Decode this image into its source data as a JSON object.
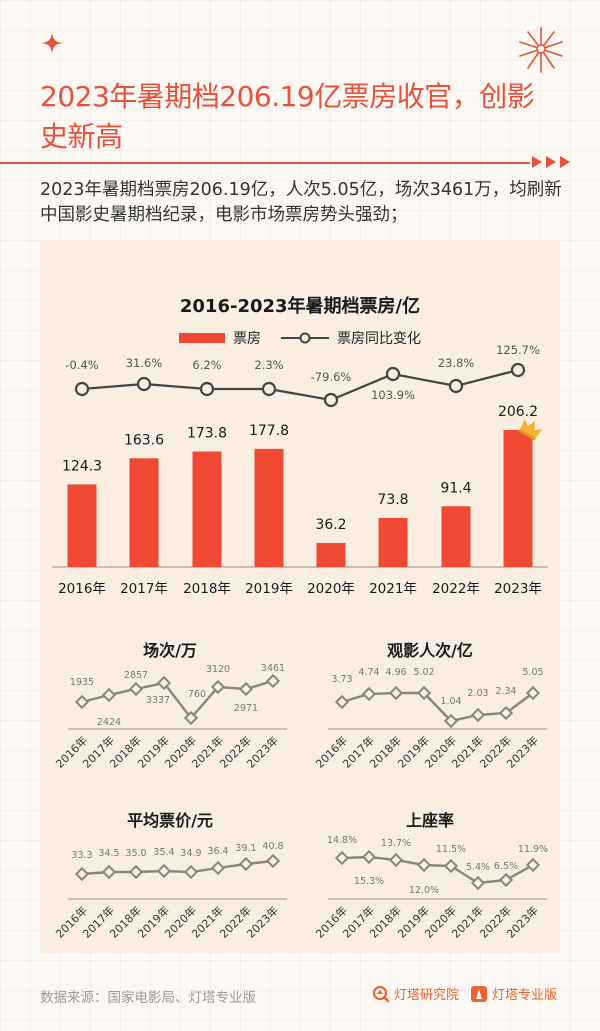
{
  "header": {
    "title": "2023年暑期档206.19亿票房收官，创影史新高",
    "summary": "2023年暑期档票房206.19亿，人次5.05亿，场次3461万，均刷新中国影史暑期档纪录，电影市场票房势头强劲；"
  },
  "colors": {
    "accent": "#e8523d",
    "bar": "#f04a35",
    "line_dark": "#444444",
    "line_gray": "#8a8480",
    "card_bg": "#faeee3",
    "page_bg": "#fcf8f3",
    "brand": "#f0622f"
  },
  "icons": {
    "top_left": "four-point-star-icon",
    "top_right": "firework-icon",
    "divider_end": "triple-arrow-icon",
    "bar_top": "crown-icon"
  },
  "chart_data": [
    {
      "type": "bar",
      "title": "2016-2023年暑期档票房/亿",
      "categories": [
        "2016年",
        "2017年",
        "2018年",
        "2019年",
        "2020年",
        "2021年",
        "2022年",
        "2023年"
      ],
      "series": [
        {
          "name": "票房",
          "type": "bar",
          "values": [
            124.3,
            163.6,
            173.8,
            177.8,
            36.2,
            73.8,
            91.4,
            206.2
          ]
        },
        {
          "name": "票房同比变化",
          "type": "line",
          "values": [
            -0.4,
            31.6,
            6.2,
            2.3,
            -79.6,
            103.9,
            23.8,
            125.7
          ],
          "labels": [
            "-0.4%",
            "31.6%",
            "6.2%",
            "2.3%",
            "-79.6%",
            "103.9%",
            "23.8%",
            "125.7%"
          ]
        }
      ],
      "legend": [
        "票房",
        "票房同比变化"
      ],
      "legend_position": "top",
      "grid": false
    },
    {
      "type": "line",
      "title": "场次/万",
      "categories": [
        "2016年",
        "2017年",
        "2018年",
        "2019年",
        "2020年",
        "2021年",
        "2022年",
        "2023年"
      ],
      "values": [
        1935,
        2424,
        2857,
        3337,
        760,
        3120,
        2971,
        3461
      ],
      "labels": [
        "1935",
        "2424",
        "2857",
        "3337",
        "760",
        "3120",
        "2971",
        "3461"
      ]
    },
    {
      "type": "line",
      "title": "观影人次/亿",
      "categories": [
        "2016年",
        "2017年",
        "2018年",
        "2019年",
        "2020年",
        "2021年",
        "2022年",
        "2023年"
      ],
      "values": [
        3.73,
        4.74,
        4.96,
        5.02,
        1.04,
        2.03,
        2.34,
        5.05
      ],
      "labels": [
        "3.73",
        "4.74",
        "4.96",
        "5.02",
        "1.04",
        "2.03",
        "2.34",
        "5.05"
      ]
    },
    {
      "type": "line",
      "title": "平均票价/元",
      "categories": [
        "2016年",
        "2017年",
        "2018年",
        "2019年",
        "2020年",
        "2021年",
        "2022年",
        "2023年"
      ],
      "values": [
        33.3,
        34.5,
        35.0,
        35.4,
        34.9,
        36.4,
        39.1,
        40.8
      ],
      "labels": [
        "33.3",
        "34.5",
        "35.0",
        "35.4",
        "34.9",
        "36.4",
        "39.1",
        "40.8"
      ]
    },
    {
      "type": "line",
      "title": "上座率",
      "categories": [
        "2016年",
        "2017年",
        "2018年",
        "2019年",
        "2020年",
        "2021年",
        "2022年",
        "2023年"
      ],
      "values": [
        14.8,
        15.3,
        13.7,
        12.0,
        11.5,
        5.4,
        6.5,
        11.9
      ],
      "labels": [
        "14.8%",
        "15.3%",
        "13.7%",
        "12.0%",
        "11.5%",
        "5.4%",
        "6.5%",
        "11.9%"
      ]
    }
  ],
  "footer": {
    "source": "数据来源：国家电影局、灯塔专业版",
    "brand1": "灯塔研究院",
    "brand2": "灯塔专业版"
  }
}
